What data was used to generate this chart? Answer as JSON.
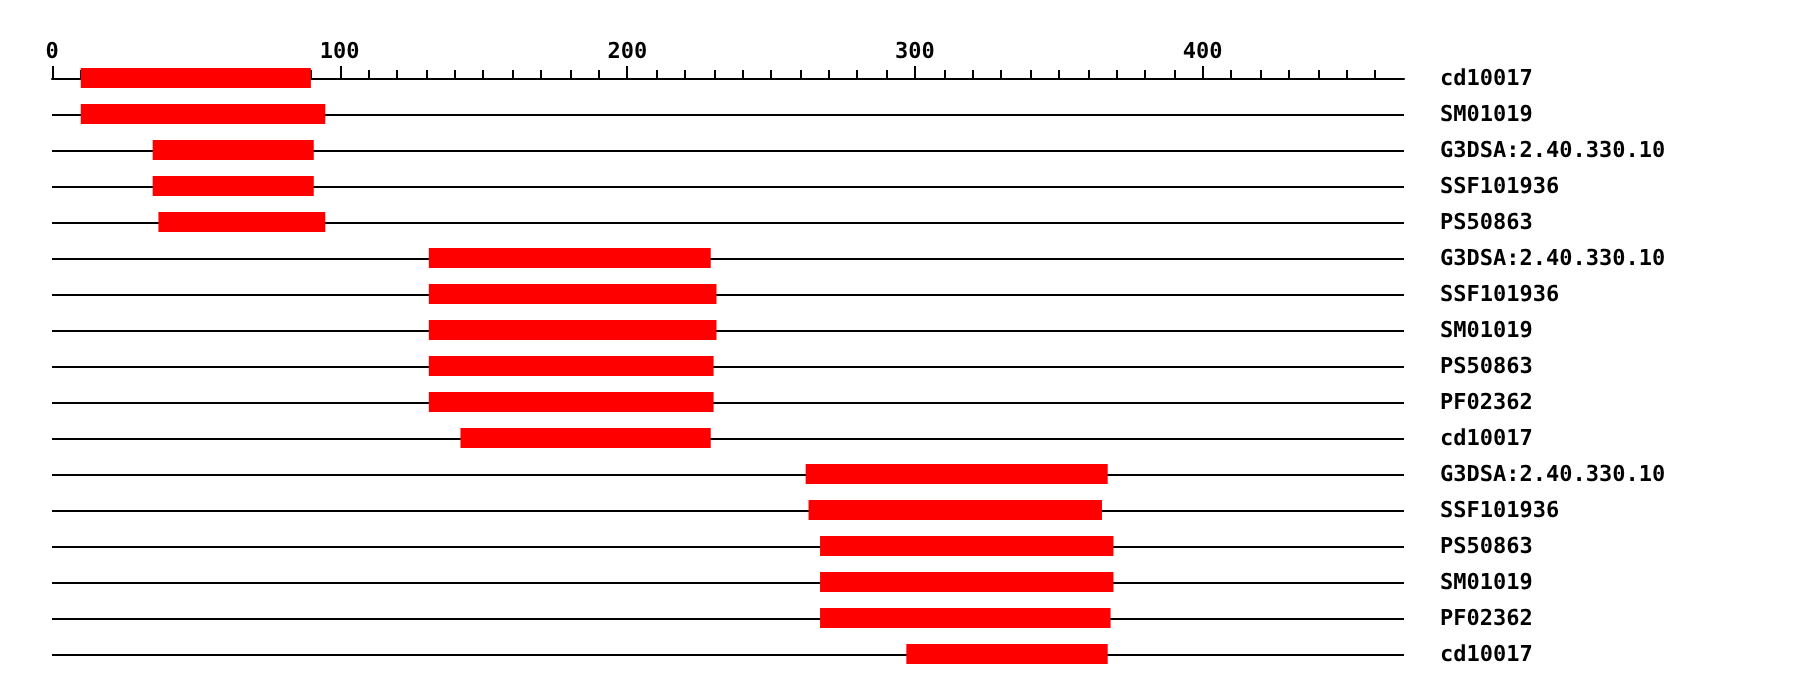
{
  "chart_data": {
    "type": "bar",
    "orientation": "horizontal",
    "categories": [
      "cd10017",
      "SM01019",
      "G3DSA:2.40.330.10",
      "SSF101936",
      "PS50863",
      "G3DSA:2.40.330.10",
      "SSF101936",
      "SM01019",
      "PS50863",
      "PF02362",
      "cd10017",
      "G3DSA:2.40.330.10",
      "SSF101936",
      "PS50863",
      "SM01019",
      "PF02362",
      "cd10017"
    ],
    "base": [
      10,
      10,
      35,
      35,
      37,
      131,
      131,
      131,
      131,
      131,
      142,
      262,
      263,
      267,
      267,
      267,
      297
    ],
    "values": [
      80,
      85,
      56,
      56,
      58,
      98,
      100,
      100,
      99,
      99,
      87,
      105,
      102,
      102,
      102,
      101,
      70
    ],
    "color": "#ff0000",
    "xlim": [
      0,
      470
    ],
    "xticks": [
      0,
      100,
      200,
      300,
      400
    ],
    "grid": "y"
  }
}
